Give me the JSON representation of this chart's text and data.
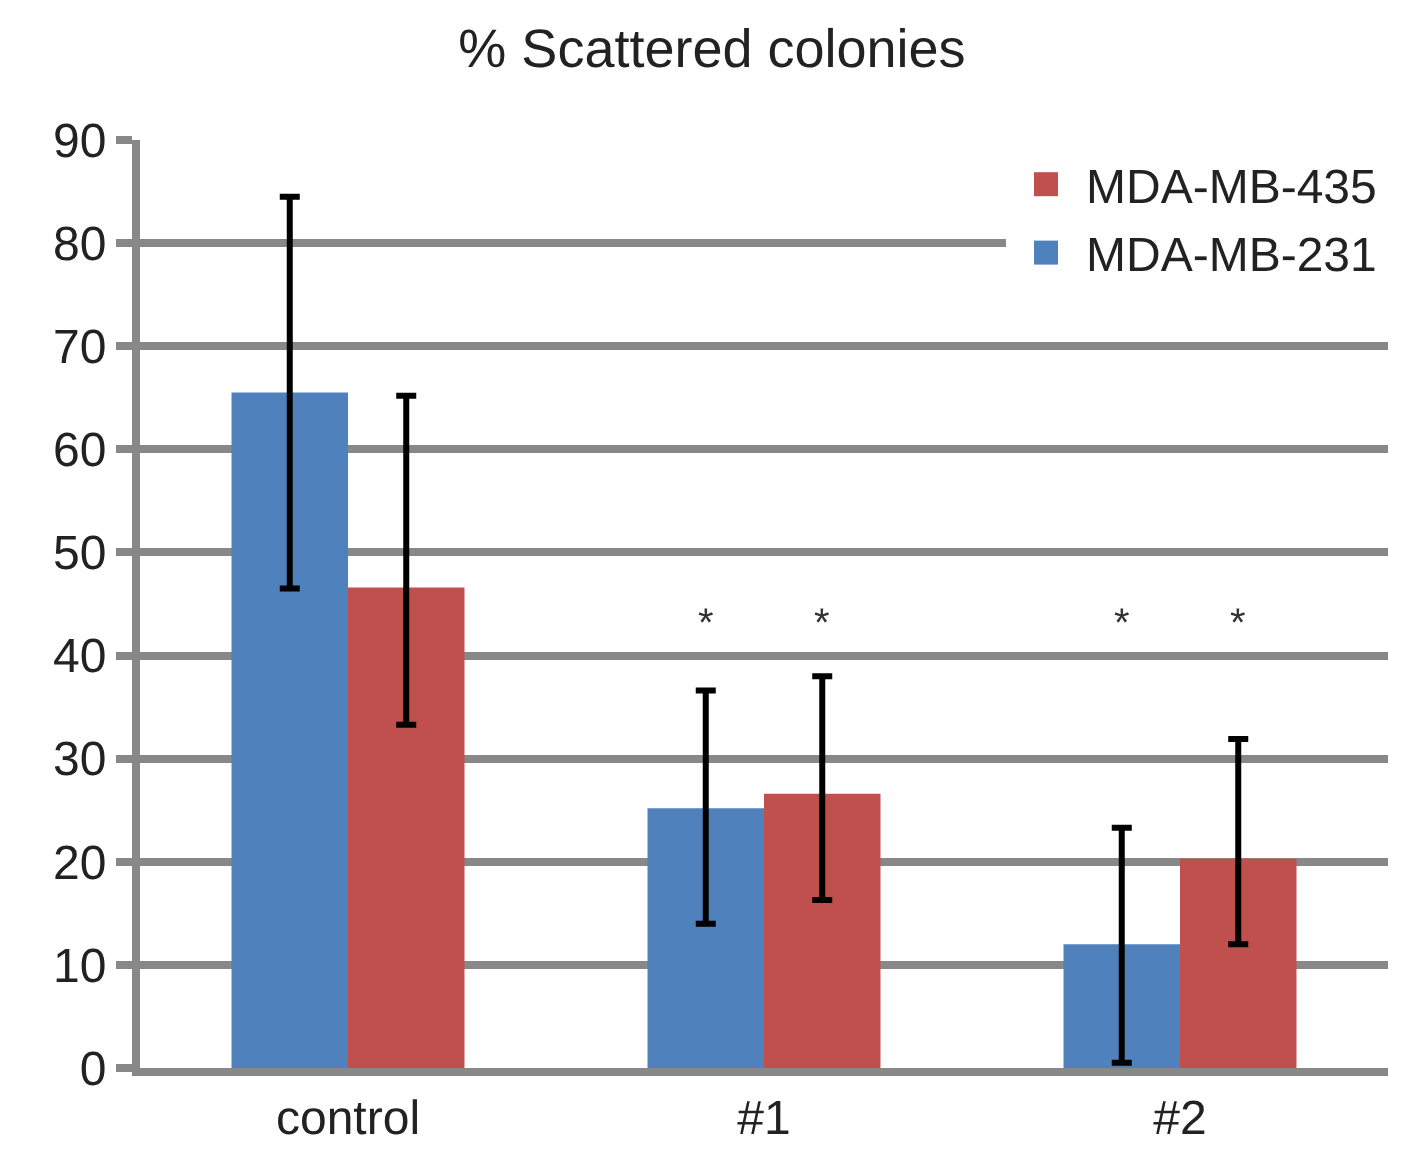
{
  "chart_data": {
    "type": "bar",
    "title": "% Scattered colonies",
    "categories": [
      "control",
      "#1",
      "#2"
    ],
    "series": [
      {
        "name": "MDA-MB-231",
        "color": "#4f81bd",
        "values": [
          65.5,
          25.2,
          12
        ],
        "errors": [
          [
            46.5,
            84.5
          ],
          [
            14,
            36.6
          ],
          [
            0.5,
            23.3
          ]
        ]
      },
      {
        "name": "MDA-MB-435",
        "color": "#c0504d",
        "values": [
          46.6,
          26.6,
          20.3
        ],
        "errors": [
          [
            33.3,
            65.2
          ],
          [
            16.3,
            38
          ],
          [
            12,
            31.9
          ]
        ]
      }
    ],
    "ylim": [
      0,
      90
    ],
    "yticks": [
      0,
      10,
      20,
      30,
      40,
      50,
      60,
      70,
      80,
      90
    ],
    "grid": "y",
    "legend": "top right",
    "annotations": [
      "*",
      "*",
      "*",
      "*"
    ]
  }
}
